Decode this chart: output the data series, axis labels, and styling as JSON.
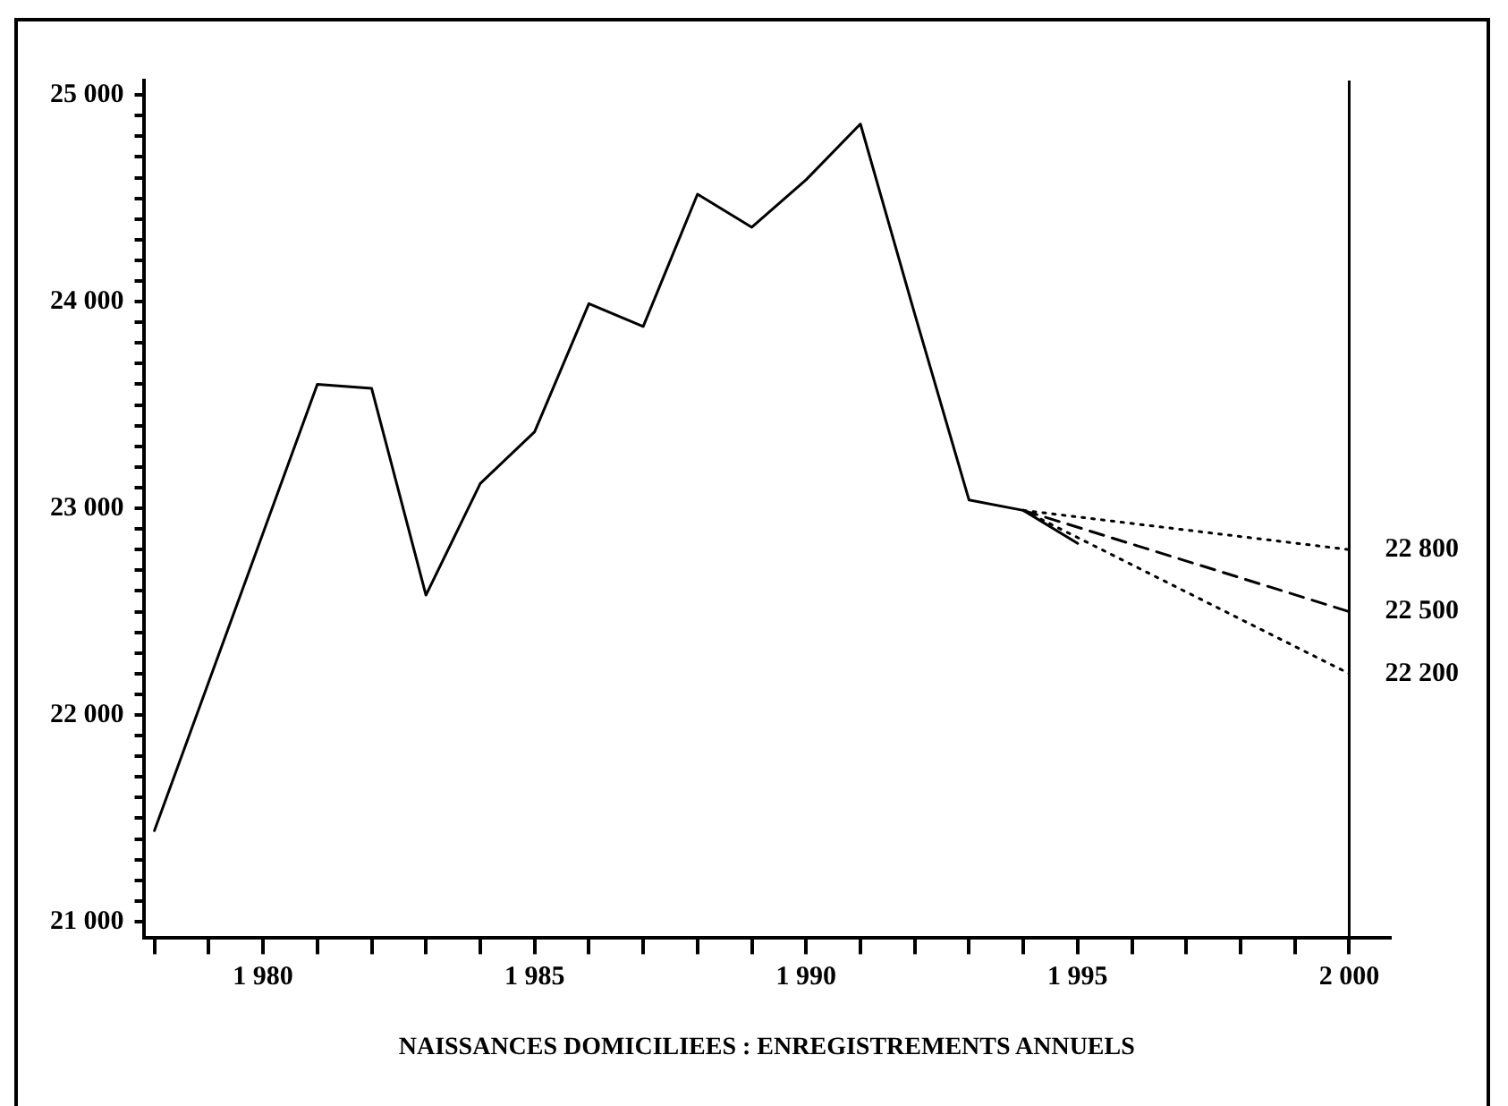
{
  "chart_data": {
    "type": "line",
    "xlabel": "NAISSANCES DOMICILIEES : ENREGISTREMENTS ANNUELS",
    "xlim": [
      1977.8,
      2000.75
    ],
    "ylim": [
      20920,
      25070
    ],
    "xticks": [
      {
        "value": 1978,
        "label": null
      },
      {
        "value": 1979,
        "label": null
      },
      {
        "value": 1980,
        "label": "1 980"
      },
      {
        "value": 1981,
        "label": null
      },
      {
        "value": 1982,
        "label": null
      },
      {
        "value": 1983,
        "label": null
      },
      {
        "value": 1984,
        "label": null
      },
      {
        "value": 1985,
        "label": "1 985"
      },
      {
        "value": 1986,
        "label": null
      },
      {
        "value": 1987,
        "label": null
      },
      {
        "value": 1988,
        "label": null
      },
      {
        "value": 1989,
        "label": null
      },
      {
        "value": 1990,
        "label": "1 990"
      },
      {
        "value": 1991,
        "label": null
      },
      {
        "value": 1992,
        "label": null
      },
      {
        "value": 1993,
        "label": null
      },
      {
        "value": 1994,
        "label": null
      },
      {
        "value": 1995,
        "label": "1 995"
      },
      {
        "value": 1996,
        "label": null
      },
      {
        "value": 1997,
        "label": null
      },
      {
        "value": 1998,
        "label": null
      },
      {
        "value": 1999,
        "label": null
      },
      {
        "value": 2000,
        "label": "2 000"
      }
    ],
    "yticks": [
      {
        "value": 21000,
        "label": "21 000"
      },
      {
        "value": 21100,
        "label": null
      },
      {
        "value": 21200,
        "label": null
      },
      {
        "value": 21300,
        "label": null
      },
      {
        "value": 21400,
        "label": null
      },
      {
        "value": 21500,
        "label": null
      },
      {
        "value": 21600,
        "label": null
      },
      {
        "value": 21700,
        "label": null
      },
      {
        "value": 21800,
        "label": null
      },
      {
        "value": 21900,
        "label": null
      },
      {
        "value": 22000,
        "label": "22 000"
      },
      {
        "value": 22100,
        "label": null
      },
      {
        "value": 22200,
        "label": null
      },
      {
        "value": 22300,
        "label": null
      },
      {
        "value": 22400,
        "label": null
      },
      {
        "value": 22500,
        "label": null
      },
      {
        "value": 22600,
        "label": null
      },
      {
        "value": 22700,
        "label": null
      },
      {
        "value": 22800,
        "label": null
      },
      {
        "value": 22900,
        "label": null
      },
      {
        "value": 23000,
        "label": "23 000"
      },
      {
        "value": 23100,
        "label": null
      },
      {
        "value": 23200,
        "label": null
      },
      {
        "value": 23300,
        "label": null
      },
      {
        "value": 23400,
        "label": null
      },
      {
        "value": 23500,
        "label": null
      },
      {
        "value": 23600,
        "label": null
      },
      {
        "value": 23700,
        "label": null
      },
      {
        "value": 23800,
        "label": null
      },
      {
        "value": 23900,
        "label": null
      },
      {
        "value": 24000,
        "label": "24 000"
      },
      {
        "value": 24100,
        "label": null
      },
      {
        "value": 24200,
        "label": null
      },
      {
        "value": 24300,
        "label": null
      },
      {
        "value": 24400,
        "label": null
      },
      {
        "value": 24500,
        "label": null
      },
      {
        "value": 24600,
        "label": null
      },
      {
        "value": 24700,
        "label": null
      },
      {
        "value": 24800,
        "label": null
      },
      {
        "value": 24900,
        "label": null
      },
      {
        "value": 25000,
        "label": "25 000"
      }
    ],
    "grid": false,
    "legend": false,
    "marker": "none",
    "ref_lines": [
      {
        "axis": "x",
        "value": 2000,
        "color": "#000000"
      }
    ],
    "series": [
      {
        "color": "#000000",
        "line_style": "solid",
        "x": [
          1978,
          1981,
          1982,
          1983,
          1984,
          1985,
          1986,
          1987,
          1988,
          1989,
          1990,
          1991,
          1992,
          1993,
          1994,
          1995
        ],
        "values": [
          21440,
          23600,
          23580,
          22580,
          23120,
          23370,
          23990,
          23880,
          24520,
          24360,
          24590,
          24860,
          23940,
          23040,
          22990,
          22830
        ]
      },
      {
        "color": "#000000",
        "line_style": "dotted",
        "x": [
          1994,
          2000
        ],
        "values": [
          22990,
          22800
        ],
        "value_labels": [
          null,
          "22 800"
        ]
      },
      {
        "color": "#000000",
        "line_style": "dashed",
        "x": [
          1994,
          2000
        ],
        "values": [
          22990,
          22500
        ],
        "value_labels": [
          null,
          "22 500"
        ]
      },
      {
        "color": "#000000",
        "line_style": "dotted",
        "x": [
          1994,
          2000
        ],
        "values": [
          22990,
          22200
        ],
        "value_labels": [
          null,
          "22 200"
        ]
      }
    ]
  }
}
